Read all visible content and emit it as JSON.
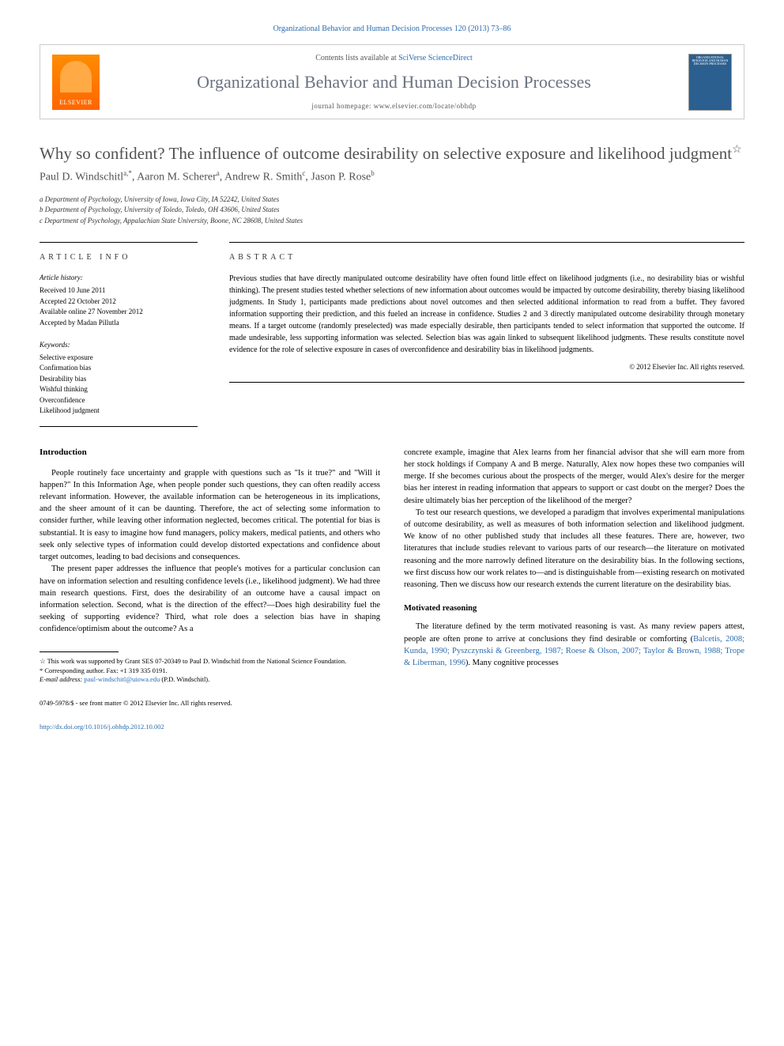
{
  "header": {
    "citation": "Organizational Behavior and Human Decision Processes 120 (2013) 73–86",
    "contents_prefix": "Contents lists available at ",
    "contents_link": "SciVerse ScienceDirect",
    "journal_name": "Organizational Behavior and Human Decision Processes",
    "homepage_prefix": "journal homepage: ",
    "homepage_url": "www.elsevier.com/locate/obhdp",
    "elsevier_label": "ELSEVIER",
    "cover_title": "ORGANIZATIONAL BEHAVIOR AND HUMAN DECISION PROCESSES"
  },
  "article": {
    "title": "Why so confident? The influence of outcome desirability on selective exposure and likelihood judgment",
    "star": "☆",
    "authors_html": "Paul D. Windschitl",
    "authors": [
      {
        "name": "Paul D. Windschitl",
        "sup": "a,*"
      },
      {
        "name": "Aaron M. Scherer",
        "sup": "a"
      },
      {
        "name": "Andrew R. Smith",
        "sup": "c"
      },
      {
        "name": "Jason P. Rose",
        "sup": "b"
      }
    ],
    "affiliations": [
      "a Department of Psychology, University of Iowa, Iowa City, IA 52242, United States",
      "b Department of Psychology, University of Toledo, Toledo, OH 43606, United States",
      "c Department of Psychology, Appalachian State University, Boone, NC 28608, United States"
    ]
  },
  "info": {
    "heading_left": "ARTICLE INFO",
    "heading_right": "ABSTRACT",
    "history_label": "Article history:",
    "history": [
      "Received 10 June 2011",
      "Accepted 22 October 2012",
      "Available online 27 November 2012",
      "Accepted by Madan Pillutla"
    ],
    "keywords_label": "Keywords:",
    "keywords": [
      "Selective exposure",
      "Confirmation bias",
      "Desirability bias",
      "Wishful thinking",
      "Overconfidence",
      "Likelihood judgment"
    ],
    "abstract": "Previous studies that have directly manipulated outcome desirability have often found little effect on likelihood judgments (i.e., no desirability bias or wishful thinking). The present studies tested whether selections of new information about outcomes would be impacted by outcome desirability, thereby biasing likelihood judgments. In Study 1, participants made predictions about novel outcomes and then selected additional information to read from a buffet. They favored information supporting their prediction, and this fueled an increase in confidence. Studies 2 and 3 directly manipulated outcome desirability through monetary means. If a target outcome (randomly preselected) was made especially desirable, then participants tended to select information that supported the outcome. If made undesirable, less supporting information was selected. Selection bias was again linked to subsequent likelihood judgments. These results constitute novel evidence for the role of selective exposure in cases of overconfidence and desirability bias in likelihood judgments.",
    "copyright": "© 2012 Elsevier Inc. All rights reserved."
  },
  "body": {
    "intro_heading": "Introduction",
    "col1_p1": "People routinely face uncertainty and grapple with questions such as \"Is it true?\" and \"Will it happen?\" In this Information Age, when people ponder such questions, they can often readily access relevant information. However, the available information can be heterogeneous in its implications, and the sheer amount of it can be daunting. Therefore, the act of selecting some information to consider further, while leaving other information neglected, becomes critical. The potential for bias is substantial. It is easy to imagine how fund managers, policy makers, medical patients, and others who seek only selective types of information could develop distorted expectations and confidence about target outcomes, leading to bad decisions and consequences.",
    "col1_p2": "The present paper addresses the influence that people's motives for a particular conclusion can have on information selection and resulting confidence levels (i.e., likelihood judgment). We had three main research questions. First, does the desirability of an outcome have a causal impact on information selection. Second, what is the direction of the effect?—Does high desirability fuel the seeking of supporting evidence? Third, what role does a selection bias have in shaping confidence/optimism about the outcome? As a",
    "col2_p1": "concrete example, imagine that Alex learns from her financial advisor that she will earn more from her stock holdings if Company A and B merge. Naturally, Alex now hopes these two companies will merge. If she becomes curious about the prospects of the merger, would Alex's desire for the merger bias her interest in reading information that appears to support or cast doubt on the merger? Does the desire ultimately bias her perception of the likelihood of the merger?",
    "col2_p2": "To test our research questions, we developed a paradigm that involves experimental manipulations of outcome desirability, as well as measures of both information selection and likelihood judgment. We know of no other published study that includes all these features. There are, however, two literatures that include studies relevant to various parts of our research—the literature on motivated reasoning and the more narrowly defined literature on the desirability bias. In the following sections, we first discuss how our work relates to—and is distinguishable from—existing research on motivated reasoning. Then we discuss how our research extends the current literature on the desirability bias.",
    "motivated_heading": "Motivated reasoning",
    "col2_p3_pre": "The literature defined by the term motivated reasoning is vast. As many review papers attest, people are often prone to arrive at conclusions they find desirable or comforting (",
    "col2_p3_refs": "Balcetis, 2008; Kunda, 1990; Pyszczynski & Greenberg, 1987; Roese & Olson, 2007; Taylor & Brown, 1988; Trope & Liberman, 1996",
    "col2_p3_post": "). Many cognitive processes"
  },
  "footnotes": {
    "star_note": "☆ This work was supported by Grant SES 07-20349 to Paul D. Windschitl from the National Science Foundation.",
    "corr_note": "* Corresponding author. Fax: +1 319 335 0191.",
    "email_label": "E-mail address: ",
    "email": "paul-windschitl@uiowa.edu",
    "email_suffix": " (P.D. Windschitl)."
  },
  "footer": {
    "issn": "0749-5978/$ - see front matter © 2012 Elsevier Inc. All rights reserved.",
    "doi": "http://dx.doi.org/10.1016/j.obhdp.2012.10.002"
  },
  "colors": {
    "link": "#2b6cb0",
    "title_gray": "#525252",
    "border": "#000000"
  }
}
